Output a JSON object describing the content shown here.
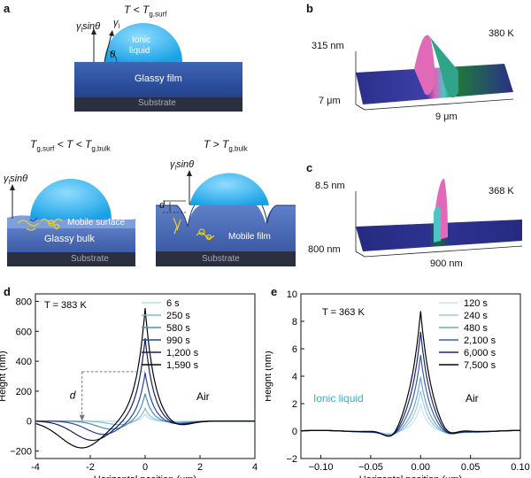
{
  "panels": {
    "a": {
      "letter": "a",
      "top_condition": "T < T",
      "top_condition_sub": "g,surf",
      "drop_label_1": "Ionic",
      "drop_label_2": "liquid",
      "gamma_sin": "γ",
      "gamma_sin_sub": "l",
      "gamma_sin_rest": "sinθ",
      "gamma_l": "γ",
      "gamma_l_sub": "l",
      "theta": "θ",
      "glassy_film": "Glassy film",
      "substrate": "Substrate",
      "mid_left_condition": "T",
      "mid_left_sub1": "g,surf",
      "mid_left_mid": " < T < T",
      "mid_left_sub2": "g,bulk",
      "mid_right_condition": "T > T",
      "mid_right_sub": "g,bulk",
      "mobile_surface": "Mobile surface",
      "glassy_bulk": "Glassy bulk",
      "mobile_film": "Mobile film",
      "d_label": "d"
    },
    "b": {
      "letter": "b",
      "temp": "380 K",
      "z_label": "315 nm",
      "y_label": "7 μm",
      "x_label": "9 μm"
    },
    "c": {
      "letter": "c",
      "temp": "368 K",
      "z_label": "8.5 nm",
      "y_label": "800 nm",
      "x_label": "900 nm"
    }
  },
  "chart_data": [
    {
      "panel": "d",
      "type": "line",
      "annotation": "T = 383 K",
      "air_label": "Air",
      "d_label": "d",
      "xlabel": "Horizontal position (μm)",
      "ylabel": "Height (nm)",
      "xlim": [
        -4,
        4
      ],
      "ylim": [
        -250,
        850
      ],
      "xticks": [
        -4,
        -2,
        0,
        2,
        4
      ],
      "yticks": [
        -200,
        0,
        200,
        400,
        600,
        800
      ],
      "legend_position": "top-right",
      "series": [
        {
          "name": "6 s",
          "color": "#b8dcef",
          "peak": 50,
          "dip": -5,
          "dip_x": -0.5,
          "width": 0.5
        },
        {
          "name": "250 s",
          "color": "#7fbcd9",
          "peak": 90,
          "dip": -25,
          "dip_x": -0.9,
          "width": 0.6
        },
        {
          "name": "580 s",
          "color": "#4e8cc0",
          "peak": 190,
          "dip": -55,
          "dip_x": -1.2,
          "width": 0.7
        },
        {
          "name": "990 s",
          "color": "#24469a",
          "peak": 330,
          "dip": -90,
          "dip_x": -1.5,
          "width": 0.8
        },
        {
          "name": "1,200 s",
          "color": "#141f5c",
          "peak": 560,
          "dip": -130,
          "dip_x": -1.9,
          "width": 0.9
        },
        {
          "name": "1,590 s",
          "color": "#050505",
          "peak": 760,
          "dip": -180,
          "dip_x": -2.3,
          "width": 1.0
        }
      ]
    },
    {
      "panel": "e",
      "type": "line",
      "annotation": "T = 363 K",
      "air_label": "Air",
      "liquid_label": "Ionic liquid",
      "xlabel": "Horizontal position (μm)",
      "ylabel": "Height (nm)",
      "xlim": [
        -0.12,
        0.1
      ],
      "ylim": [
        -2,
        10
      ],
      "xticks": [
        -0.1,
        -0.05,
        0.0,
        0.05,
        0.1
      ],
      "xtick_labels": [
        "−0.10",
        "−0.05",
        "0.00",
        "0.05",
        "0.10"
      ],
      "yticks": [
        -2,
        0,
        2,
        4,
        6,
        8,
        10
      ],
      "legend_position": "top-right",
      "series": [
        {
          "name": "120 s",
          "color": "#c6e3f2",
          "peak": 1.8,
          "dip": -0.15,
          "width": 0.006
        },
        {
          "name": "240 s",
          "color": "#9ccbe4",
          "peak": 2.8,
          "dip": -0.25,
          "width": 0.007
        },
        {
          "name": "480 s",
          "color": "#6ea6d2",
          "peak": 3.8,
          "dip": -0.35,
          "width": 0.008
        },
        {
          "name": "2,100 s",
          "color": "#3a5fad",
          "peak": 5.4,
          "dip": -0.5,
          "width": 0.009
        },
        {
          "name": "6,000 s",
          "color": "#1c2870",
          "peak": 7.1,
          "dip": -0.7,
          "width": 0.01
        },
        {
          "name": "7,500 s",
          "color": "#050505",
          "peak": 8.6,
          "dip": -0.9,
          "width": 0.011
        }
      ]
    }
  ]
}
